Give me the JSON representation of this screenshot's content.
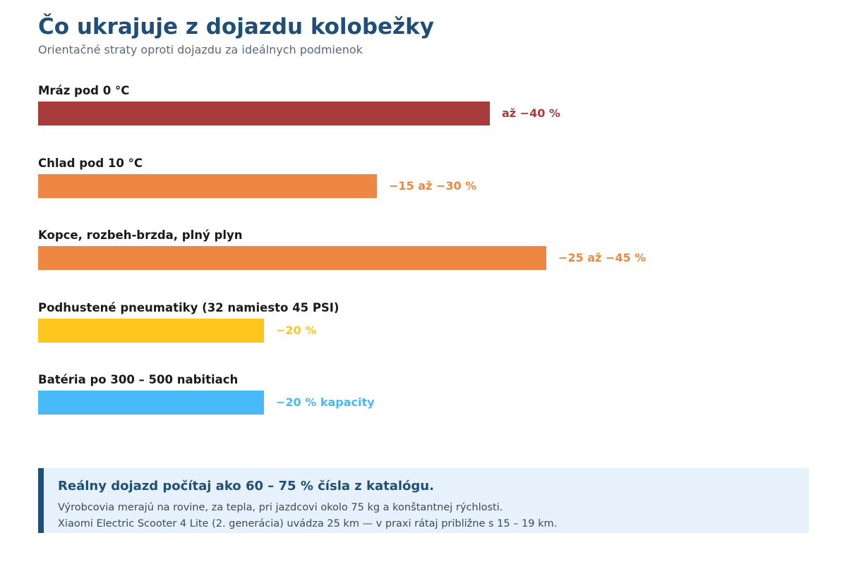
{
  "chart_data": {
    "type": "bar",
    "orientation": "horizontal",
    "title": "Čo ukrajuje z dojazdu kolobežky",
    "subtitle": "Orientačné straty oproti dojazdu za ideálnych podmienok",
    "xlabel": "",
    "ylabel": "",
    "xlim": [
      0,
      100
    ],
    "grid": false,
    "categories": [
      "Mráz pod 0 °C",
      "Chlad pod 10 °C",
      "Kopce, rozbeh-brzda, plný plyn",
      "Podhustené pneumatiky (32 namiesto 45 PSI)",
      "Batéria po 300 – 500 nabitiach"
    ],
    "values": [
      40,
      30,
      45,
      20,
      20
    ],
    "data_labels": [
      "až −40 %",
      "−15 až −30 %",
      "−25 až −45 %",
      "−20 %",
      "−20 % kapacity"
    ],
    "colors": [
      "#a83c3c",
      "#ee8742",
      "#ee8742",
      "#ffc61e",
      "#48baf8"
    ]
  },
  "note": {
    "title": "Reálny dojazd počítaj ako 60 – 75 % čísla z katalógu.",
    "line1": "Výrobcovia merajú na rovine, za tepla, pri jazdcovi okolo 75 kg a konštantnej rýchlosti.",
    "line2": "Xiaomi Electric Scooter 4 Lite (2. generácia) uvádza 25 km — v praxi rátaj približne s 15 – 19 km."
  }
}
